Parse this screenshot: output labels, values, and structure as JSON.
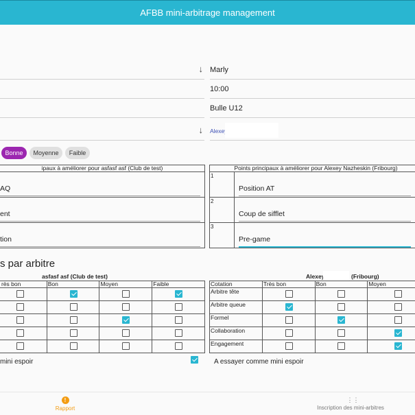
{
  "app": {
    "title": "AFBB mini-arbitrage management"
  },
  "form": {
    "left_fields": [
      {
        "value": "",
        "has_dropdown": true
      },
      {
        "value": ""
      },
      {
        "value": ""
      },
      {
        "value": "",
        "has_dropdown": true
      }
    ],
    "right_fields": [
      {
        "value": "Marly"
      },
      {
        "value": "10:00"
      },
      {
        "value": "Bulle U12"
      },
      {
        "value": "Alexey"
      }
    ],
    "dropdown_icon": "arrow-down-icon"
  },
  "rating_chips": [
    {
      "label": "Bonne",
      "selected": true
    },
    {
      "label": "Moyenne",
      "selected": false
    },
    {
      "label": "Faible",
      "selected": false
    }
  ],
  "points": {
    "left": {
      "header": "ipaux à améliorer pour asfasf asf (Club de test)",
      "items": [
        {
          "text": "AQ"
        },
        {
          "text": "ent"
        },
        {
          "text": "tion"
        }
      ]
    },
    "right": {
      "header": "Points principaux à améliorer pour Alexey Nazheskin (Fribourg)",
      "items": [
        {
          "num": "1",
          "text": "Position AT"
        },
        {
          "num": "2",
          "text": "Coup de sifflet"
        },
        {
          "num": "3",
          "text": "Pre-game"
        }
      ]
    }
  },
  "evaluation": {
    "section_title": "s par arbitre",
    "left": {
      "referee": "asfasf asf (Club de test)",
      "columns": [
        "rès bon",
        "Bon",
        "Moyen",
        "Faible"
      ],
      "rows": [
        [
          false,
          true,
          false,
          true
        ],
        [
          false,
          false,
          false,
          false
        ],
        [
          false,
          false,
          true,
          false
        ],
        [
          false,
          false,
          false,
          false
        ],
        [
          false,
          false,
          false,
          false
        ]
      ],
      "mini_espoir_label": "mini espoir",
      "mini_espoir_checked": true
    },
    "right": {
      "referee_first": "Alexey",
      "referee_club": "(Fribourg)",
      "columns": [
        "Cotation",
        "Très bon",
        "Bon",
        "Moyen"
      ],
      "row_labels": [
        "Arbitre tête",
        "Arbitre queue",
        "Formel",
        "Collaboration",
        "Engagement"
      ],
      "rows": [
        [
          false,
          false,
          false
        ],
        [
          true,
          false,
          false
        ],
        [
          false,
          true,
          false
        ],
        [
          false,
          false,
          true
        ],
        [
          false,
          false,
          true
        ]
      ],
      "mini_espoir_label": "A essayer comme mini espoir"
    }
  },
  "bottom_nav": {
    "items": [
      {
        "label": "Rapport",
        "icon": "alert-circle-icon",
        "color": "#f39c12"
      },
      {
        "label": "Inscription des mini-arbitres",
        "icon": "dialpad-icon",
        "color": "#777777"
      }
    ]
  },
  "colors": {
    "primary": "#29b6d1",
    "chip_selected": "#9c27b0",
    "accent": "#f39c12"
  }
}
